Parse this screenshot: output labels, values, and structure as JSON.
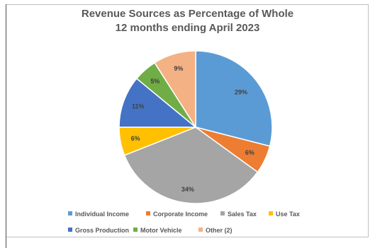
{
  "chart_data": {
    "type": "pie",
    "title": "Revenue Sources as Percentage of Whole",
    "subtitle": "12 months ending April 2023",
    "slices": [
      {
        "name": "Individual Income",
        "value": 29,
        "label": "29%",
        "color": "#5b9bd5"
      },
      {
        "name": "Corporate Income",
        "value": 6,
        "label": "6%",
        "color": "#ed7d31"
      },
      {
        "name": "Sales Tax",
        "value": 34,
        "label": "34%",
        "color": "#a5a5a5"
      },
      {
        "name": "Use Tax",
        "value": 6,
        "label": "6%",
        "color": "#ffc000"
      },
      {
        "name": "Gross Production",
        "value": 11,
        "label": "11%",
        "color": "#4472c4"
      },
      {
        "name": "Motor Vehicle",
        "value": 5,
        "label": "5%",
        "color": "#70ad47"
      },
      {
        "name": "Other (2)",
        "value": 9,
        "label": "9%",
        "color": "#f4b183"
      }
    ],
    "legend_position": "bottom"
  }
}
